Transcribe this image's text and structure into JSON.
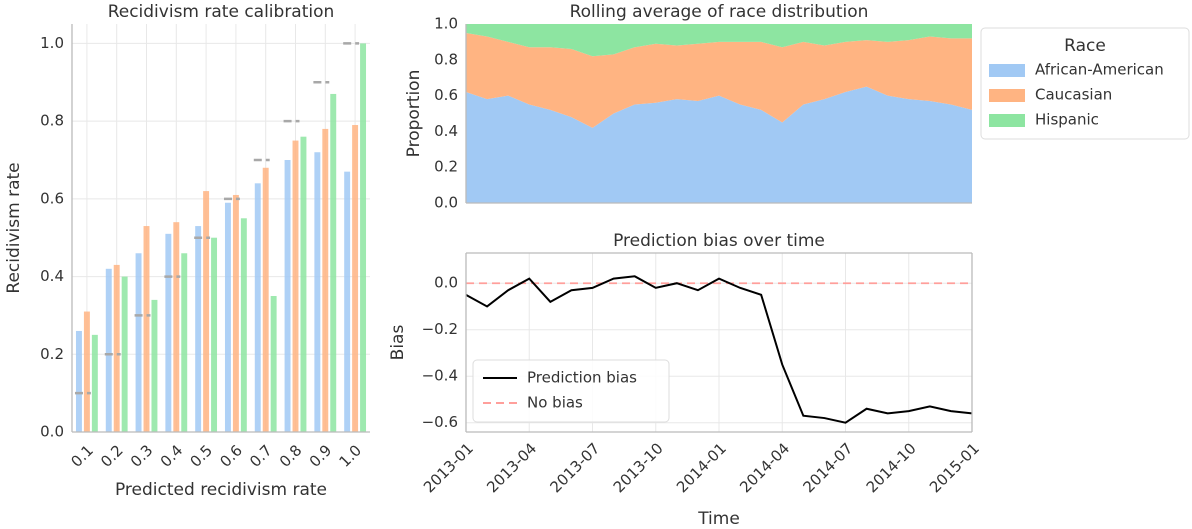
{
  "chart_data": [
    {
      "type": "bar",
      "title": "Recidivism rate calibration",
      "xlabel": "Predicted recidivism rate",
      "ylabel": "Recidivism rate",
      "categories": [
        "0.1",
        "0.2",
        "0.3",
        "0.4",
        "0.5",
        "0.6",
        "0.7",
        "0.8",
        "0.9",
        "1.0"
      ],
      "targets": [
        0.1,
        0.2,
        0.3,
        0.4,
        0.5,
        0.6,
        0.7,
        0.8,
        0.9,
        1.0
      ],
      "target_color": "#a8a8a8",
      "series": [
        {
          "name": "African-American",
          "color": "#a1c9f4",
          "values": [
            0.26,
            0.42,
            0.46,
            0.51,
            0.53,
            0.59,
            0.64,
            0.7,
            0.72,
            0.67
          ]
        },
        {
          "name": "Caucasian",
          "color": "#ffb482",
          "values": [
            0.31,
            0.43,
            0.53,
            0.54,
            0.62,
            0.61,
            0.68,
            0.75,
            0.78,
            0.79
          ]
        },
        {
          "name": "Hispanic",
          "color": "#8de5a1",
          "values": [
            0.25,
            0.4,
            0.34,
            0.46,
            0.5,
            0.55,
            0.35,
            0.76,
            0.87,
            1.0
          ]
        }
      ],
      "ylim": [
        0,
        1.05
      ],
      "yticks": [
        {
          "value": 0,
          "label": "0.0"
        },
        0.2,
        0.4,
        0.6,
        0.8,
        {
          "value": 1,
          "label": "1.0"
        }
      ],
      "grid": true
    },
    {
      "type": "area",
      "title": "Rolling average of race distribution",
      "ylabel": "Proportion",
      "legend_title": "Race",
      "legend": "outside right",
      "x": [
        "2013-01",
        "2013-02",
        "2013-03",
        "2013-04",
        "2013-05",
        "2013-06",
        "2013-07",
        "2013-08",
        "2013-09",
        "2013-10",
        "2013-11",
        "2013-12",
        "2014-01",
        "2014-02",
        "2014-03",
        "2014-04",
        "2014-05",
        "2014-06",
        "2014-07",
        "2014-08",
        "2014-09",
        "2014-10",
        "2014-11",
        "2014-12",
        "2015-01"
      ],
      "series": [
        {
          "name": "African-American",
          "color": "#a1c9f4",
          "values": [
            0.62,
            0.58,
            0.6,
            0.55,
            0.52,
            0.48,
            0.42,
            0.5,
            0.55,
            0.56,
            0.58,
            0.57,
            0.6,
            0.55,
            0.52,
            0.45,
            0.55,
            0.58,
            0.62,
            0.65,
            0.6,
            0.58,
            0.57,
            0.55,
            0.52
          ]
        },
        {
          "name": "Caucasian",
          "color": "#ffb482",
          "values": [
            0.33,
            0.35,
            0.3,
            0.32,
            0.35,
            0.38,
            0.4,
            0.33,
            0.32,
            0.33,
            0.3,
            0.32,
            0.3,
            0.35,
            0.38,
            0.42,
            0.35,
            0.3,
            0.28,
            0.26,
            0.3,
            0.33,
            0.36,
            0.37,
            0.4
          ]
        },
        {
          "name": "Hispanic",
          "color": "#8de5a1",
          "values": [
            0.05,
            0.07,
            0.1,
            0.13,
            0.13,
            0.14,
            0.18,
            0.17,
            0.13,
            0.11,
            0.12,
            0.11,
            0.1,
            0.1,
            0.1,
            0.13,
            0.1,
            0.12,
            0.1,
            0.09,
            0.1,
            0.09,
            0.07,
            0.08,
            0.08
          ]
        }
      ],
      "xlim": [
        "2013-01",
        "2015-01"
      ],
      "ylim": [
        0,
        1
      ],
      "yticks": [
        {
          "value": 0,
          "label": "0.0"
        },
        0.2,
        0.4,
        0.6,
        0.8,
        {
          "value": 1,
          "label": "1.0"
        }
      ]
    },
    {
      "type": "line",
      "title": "Prediction bias over time",
      "xlabel": "Time",
      "ylabel": "Bias",
      "legend": "lower left",
      "x": [
        "2013-01",
        "2013-02",
        "2013-03",
        "2013-04",
        "2013-05",
        "2013-06",
        "2013-07",
        "2013-08",
        "2013-09",
        "2013-10",
        "2013-11",
        "2013-12",
        "2014-01",
        "2014-02",
        "2014-03",
        "2014-04",
        "2014-05",
        "2014-06",
        "2014-07",
        "2014-08",
        "2014-09",
        "2014-10",
        "2014-11",
        "2014-12",
        "2015-01"
      ],
      "series": [
        {
          "name": "Prediction bias",
          "color": "#000000",
          "values": [
            -0.05,
            -0.1,
            -0.03,
            0.02,
            -0.08,
            -0.03,
            -0.02,
            0.02,
            0.03,
            -0.02,
            0.0,
            -0.03,
            0.02,
            -0.02,
            -0.05,
            -0.35,
            -0.57,
            -0.58,
            -0.6,
            -0.54,
            -0.56,
            -0.55,
            -0.53,
            -0.55,
            -0.56
          ]
        },
        {
          "name": "No bias",
          "color": "#ff9f9b",
          "dashed": true,
          "values": [
            0,
            0,
            0,
            0,
            0,
            0,
            0,
            0,
            0,
            0,
            0,
            0,
            0,
            0,
            0,
            0,
            0,
            0,
            0,
            0,
            0,
            0,
            0,
            0,
            0
          ]
        }
      ],
      "xlim": [
        "2013-01",
        "2015-01"
      ],
      "xticks": [
        "2013-01",
        "2013-04",
        "2013-07",
        "2013-10",
        "2014-01",
        "2014-04",
        "2014-07",
        "2014-10",
        "2015-01"
      ],
      "ylim": [
        -0.64,
        0.13
      ],
      "yticks": [
        {
          "value": -0.6,
          "label": "−0.6"
        },
        {
          "value": -0.4,
          "label": "−0.4"
        },
        {
          "value": -0.2,
          "label": "−0.2"
        },
        {
          "value": 0,
          "label": "0.0"
        }
      ],
      "grid": true
    }
  ]
}
